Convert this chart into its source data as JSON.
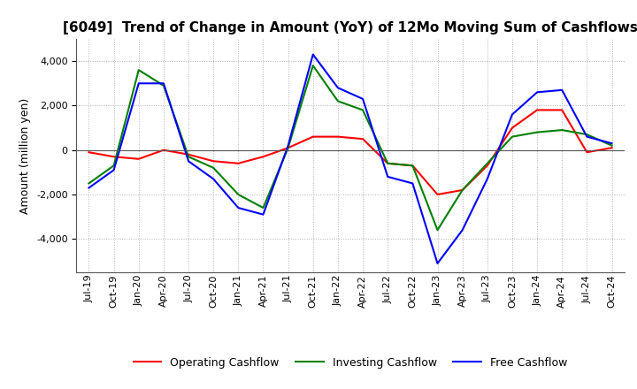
{
  "title": "[6049]  Trend of Change in Amount (YoY) of 12Mo Moving Sum of Cashflows",
  "ylabel": "Amount (million yen)",
  "x_labels": [
    "Jul-19",
    "Oct-19",
    "Jan-20",
    "Apr-20",
    "Jul-20",
    "Oct-20",
    "Jan-21",
    "Apr-21",
    "Jul-21",
    "Oct-21",
    "Jan-22",
    "Apr-22",
    "Jul-22",
    "Oct-22",
    "Jan-23",
    "Apr-23",
    "Jul-23",
    "Oct-23",
    "Jan-24",
    "Apr-24",
    "Jul-24",
    "Oct-24"
  ],
  "operating": [
    -100,
    -300,
    -400,
    0,
    -200,
    -500,
    -600,
    -300,
    100,
    600,
    600,
    500,
    -600,
    -700,
    -2000,
    -1800,
    -700,
    1000,
    1800,
    1800,
    -100,
    100
  ],
  "investing": [
    -1500,
    -700,
    3600,
    2900,
    -300,
    -800,
    -2000,
    -2600,
    100,
    3800,
    2200,
    1800,
    -600,
    -700,
    -3600,
    -1800,
    -600,
    600,
    800,
    900,
    700,
    200
  ],
  "free": [
    -1700,
    -900,
    3000,
    3000,
    -500,
    -1300,
    -2600,
    -2900,
    200,
    4300,
    2800,
    2300,
    -1200,
    -1500,
    -5100,
    -3600,
    -1300,
    1600,
    2600,
    2700,
    600,
    300
  ],
  "operating_color": "#ff0000",
  "investing_color": "#008000",
  "free_color": "#0000ff",
  "ylim": [
    -5500,
    5000
  ],
  "yticks": [
    -4000,
    -2000,
    0,
    2000,
    4000
  ],
  "background_color": "#ffffff",
  "grid_color": "#b0b0b0",
  "title_fontsize": 11,
  "axis_fontsize": 9,
  "tick_fontsize": 8,
  "legend_fontsize": 9
}
